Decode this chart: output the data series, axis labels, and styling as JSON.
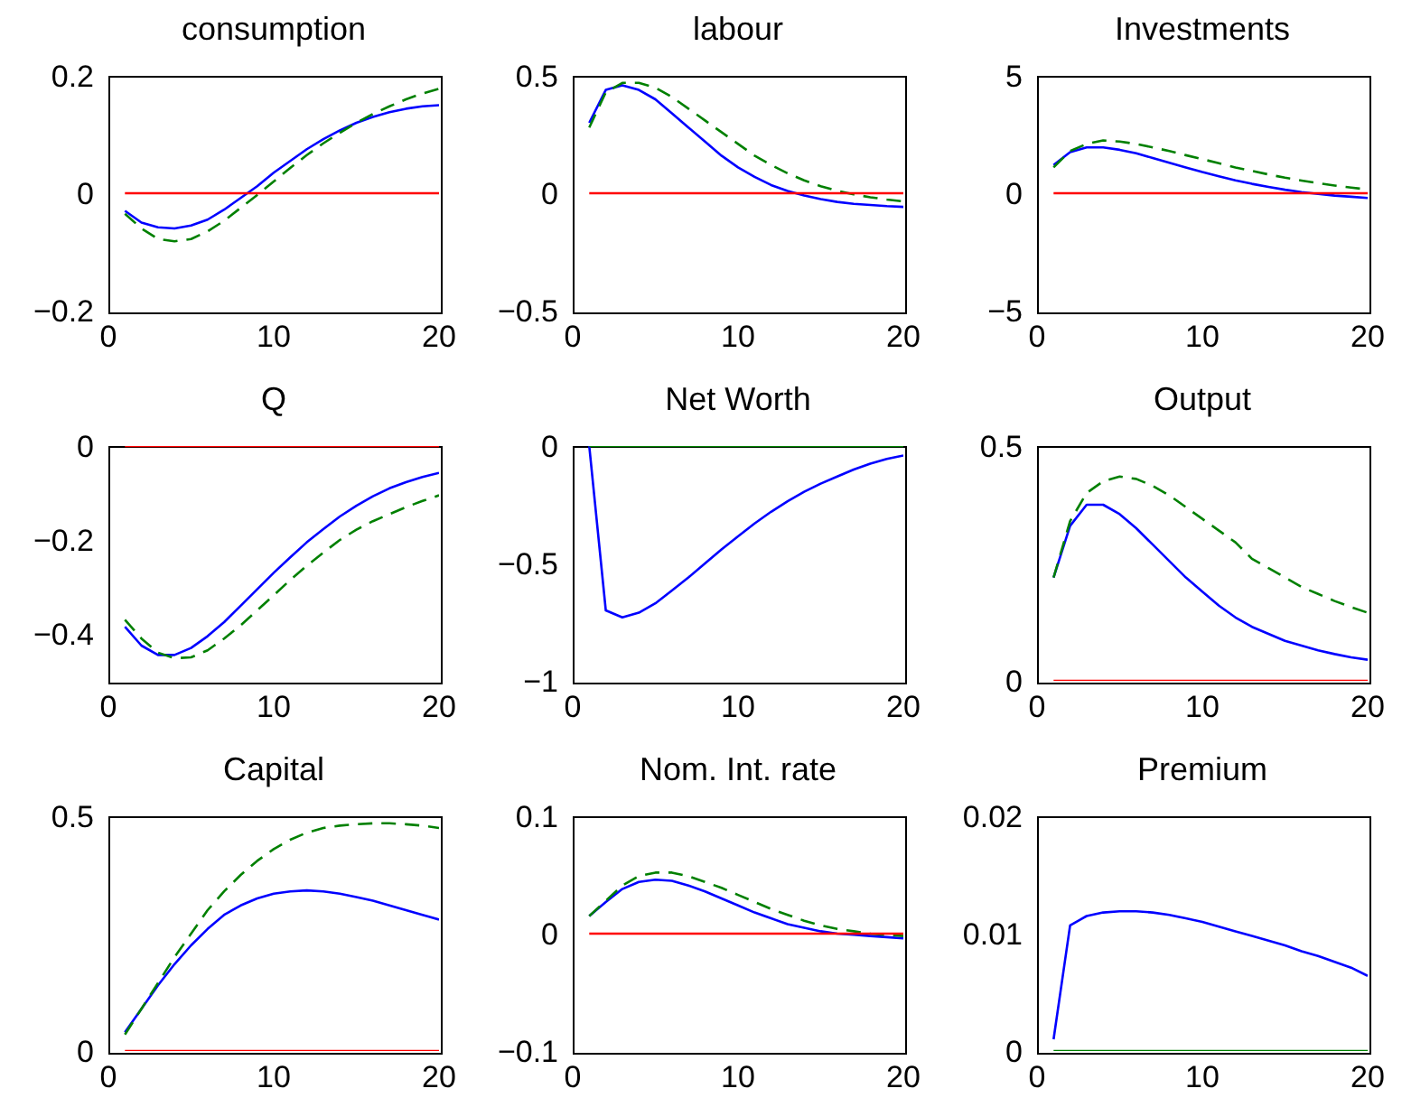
{
  "chart_data": [
    {
      "type": "line",
      "title": "consumption",
      "x": [
        1,
        2,
        3,
        4,
        5,
        6,
        7,
        8,
        9,
        10,
        11,
        12,
        13,
        14,
        15,
        16,
        17,
        18,
        19,
        20
      ],
      "xlim": [
        0,
        20
      ],
      "xticks": [
        0,
        10,
        20
      ],
      "ylim": [
        -0.2,
        0.2
      ],
      "yticks": [
        -0.2,
        0,
        0.2
      ],
      "series": [
        {
          "color": "#0000ff",
          "line_style": "solid",
          "values": [
            -0.03,
            -0.05,
            -0.058,
            -0.06,
            -0.055,
            -0.045,
            -0.028,
            -0.008,
            0.012,
            0.035,
            0.055,
            0.075,
            0.092,
            0.107,
            0.12,
            0.13,
            0.138,
            0.144,
            0.148,
            0.15
          ]
        },
        {
          "color": "#008000",
          "line_style": "dashed",
          "values": [
            -0.035,
            -0.06,
            -0.078,
            -0.082,
            -0.078,
            -0.065,
            -0.047,
            -0.025,
            -0.003,
            0.02,
            0.043,
            0.065,
            0.085,
            0.103,
            0.12,
            0.135,
            0.148,
            0.16,
            0.17,
            0.178
          ]
        },
        {
          "color": "#ff0000",
          "line_style": "solid",
          "values": [
            0,
            0,
            0,
            0,
            0,
            0,
            0,
            0,
            0,
            0,
            0,
            0,
            0,
            0,
            0,
            0,
            0,
            0,
            0,
            0
          ]
        }
      ]
    },
    {
      "type": "line",
      "title": "labour",
      "x": [
        1,
        2,
        3,
        4,
        5,
        6,
        7,
        8,
        9,
        10,
        11,
        12,
        13,
        14,
        15,
        16,
        17,
        18,
        19,
        20
      ],
      "xlim": [
        0,
        20
      ],
      "xticks": [
        0,
        10,
        20
      ],
      "ylim": [
        -0.5,
        0.5
      ],
      "yticks": [
        -0.5,
        0,
        0.5
      ],
      "series": [
        {
          "color": "#0000ff",
          "line_style": "solid",
          "values": [
            0.3,
            0.44,
            0.46,
            0.44,
            0.4,
            0.34,
            0.28,
            0.22,
            0.16,
            0.11,
            0.07,
            0.035,
            0.01,
            -0.01,
            -0.025,
            -0.037,
            -0.045,
            -0.05,
            -0.055,
            -0.058
          ]
        },
        {
          "color": "#008000",
          "line_style": "dashed",
          "values": [
            0.28,
            0.43,
            0.47,
            0.47,
            0.45,
            0.41,
            0.36,
            0.31,
            0.26,
            0.21,
            0.16,
            0.12,
            0.085,
            0.055,
            0.03,
            0.01,
            -0.005,
            -0.017,
            -0.027,
            -0.035
          ]
        },
        {
          "color": "#ff0000",
          "line_style": "solid",
          "values": [
            0,
            0,
            0,
            0,
            0,
            0,
            0,
            0,
            0,
            0,
            0,
            0,
            0,
            0,
            0,
            0,
            0,
            0,
            0,
            0
          ]
        }
      ]
    },
    {
      "type": "line",
      "title": "Investments",
      "x": [
        1,
        2,
        3,
        4,
        5,
        6,
        7,
        8,
        9,
        10,
        11,
        12,
        13,
        14,
        15,
        16,
        17,
        18,
        19,
        20
      ],
      "xlim": [
        0,
        20
      ],
      "xticks": [
        0,
        10,
        20
      ],
      "ylim": [
        -5,
        5
      ],
      "yticks": [
        -5,
        0,
        5
      ],
      "series": [
        {
          "color": "#0000ff",
          "line_style": "solid",
          "values": [
            1.2,
            1.75,
            1.95,
            1.95,
            1.85,
            1.7,
            1.5,
            1.3,
            1.1,
            0.9,
            0.72,
            0.55,
            0.4,
            0.27,
            0.15,
            0.05,
            -0.03,
            -0.1,
            -0.15,
            -0.2
          ]
        },
        {
          "color": "#008000",
          "line_style": "dashed",
          "values": [
            1.1,
            1.8,
            2.1,
            2.25,
            2.2,
            2.1,
            1.95,
            1.8,
            1.62,
            1.45,
            1.28,
            1.1,
            0.95,
            0.8,
            0.66,
            0.54,
            0.43,
            0.33,
            0.24,
            0.16
          ]
        },
        {
          "color": "#ff0000",
          "line_style": "solid",
          "values": [
            0,
            0,
            0,
            0,
            0,
            0,
            0,
            0,
            0,
            0,
            0,
            0,
            0,
            0,
            0,
            0,
            0,
            0,
            0,
            0
          ]
        }
      ]
    },
    {
      "type": "line",
      "title": "Q",
      "x": [
        1,
        2,
        3,
        4,
        5,
        6,
        7,
        8,
        9,
        10,
        11,
        12,
        13,
        14,
        15,
        16,
        17,
        18,
        19,
        20
      ],
      "xlim": [
        0,
        20
      ],
      "xticks": [
        0,
        10,
        20
      ],
      "ylim": [
        -0.5,
        0
      ],
      "yticks": [
        -0.4,
        -0.2,
        0
      ],
      "series": [
        {
          "color": "#0000ff",
          "line_style": "solid",
          "values": [
            -0.385,
            -0.425,
            -0.445,
            -0.445,
            -0.43,
            -0.405,
            -0.375,
            -0.34,
            -0.305,
            -0.27,
            -0.237,
            -0.205,
            -0.177,
            -0.15,
            -0.127,
            -0.107,
            -0.09,
            -0.077,
            -0.066,
            -0.057
          ]
        },
        {
          "color": "#008000",
          "line_style": "dashed",
          "values": [
            -0.37,
            -0.41,
            -0.44,
            -0.452,
            -0.45,
            -0.435,
            -0.41,
            -0.382,
            -0.35,
            -0.318,
            -0.285,
            -0.255,
            -0.227,
            -0.2,
            -0.178,
            -0.16,
            -0.145,
            -0.13,
            -0.117,
            -0.105
          ]
        },
        {
          "color": "#ff0000",
          "line_style": "solid",
          "values": [
            0,
            0,
            0,
            0,
            0,
            0,
            0,
            0,
            0,
            0,
            0,
            0,
            0,
            0,
            0,
            0,
            0,
            0,
            0,
            0
          ]
        }
      ]
    },
    {
      "type": "line",
      "title": "Net Worth",
      "x": [
        1,
        2,
        3,
        4,
        5,
        6,
        7,
        8,
        9,
        10,
        11,
        12,
        13,
        14,
        15,
        16,
        17,
        18,
        19,
        20
      ],
      "xlim": [
        0,
        20
      ],
      "xticks": [
        0,
        10,
        20
      ],
      "ylim": [
        -1,
        0
      ],
      "yticks": [
        -1,
        -0.5,
        0
      ],
      "series": [
        {
          "color": "#0000ff",
          "line_style": "solid",
          "values": [
            0,
            -0.7,
            -0.73,
            -0.71,
            -0.67,
            -0.615,
            -0.56,
            -0.5,
            -0.44,
            -0.385,
            -0.33,
            -0.28,
            -0.235,
            -0.195,
            -0.16,
            -0.13,
            -0.1,
            -0.075,
            -0.055,
            -0.04
          ]
        },
        {
          "color": "#008000",
          "line_style": "solid",
          "values": [
            0,
            0,
            0,
            0,
            0,
            0,
            0,
            0,
            0,
            0,
            0,
            0,
            0,
            0,
            0,
            0,
            0,
            0,
            0,
            0
          ]
        }
      ]
    },
    {
      "type": "line",
      "title": "Output",
      "x": [
        1,
        2,
        3,
        4,
        5,
        6,
        7,
        8,
        9,
        10,
        11,
        12,
        13,
        14,
        15,
        16,
        17,
        18,
        19,
        20
      ],
      "xlim": [
        0,
        20
      ],
      "xticks": [
        0,
        10,
        20
      ],
      "ylim": [
        0,
        0.5
      ],
      "yticks": [
        0,
        0.5
      ],
      "series": [
        {
          "color": "#0000ff",
          "line_style": "solid",
          "values": [
            0.22,
            0.33,
            0.375,
            0.375,
            0.355,
            0.325,
            0.29,
            0.255,
            0.22,
            0.19,
            0.16,
            0.135,
            0.115,
            0.1,
            0.085,
            0.075,
            0.065,
            0.057,
            0.05,
            0.045
          ]
        },
        {
          "color": "#008000",
          "line_style": "dashed",
          "values": [
            0.22,
            0.34,
            0.4,
            0.425,
            0.435,
            0.43,
            0.415,
            0.395,
            0.37,
            0.345,
            0.32,
            0.295,
            0.26,
            0.24,
            0.22,
            0.2,
            0.185,
            0.17,
            0.157,
            0.145
          ]
        },
        {
          "color": "#ff0000",
          "line_style": "solid",
          "values": [
            0,
            0,
            0,
            0,
            0,
            0,
            0,
            0,
            0,
            0,
            0,
            0,
            0,
            0,
            0,
            0,
            0,
            0,
            0,
            0
          ]
        }
      ]
    },
    {
      "type": "line",
      "title": "Capital",
      "x": [
        1,
        2,
        3,
        4,
        5,
        6,
        7,
        8,
        9,
        10,
        11,
        12,
        13,
        14,
        15,
        16,
        17,
        18,
        19,
        20
      ],
      "xlim": [
        0,
        20
      ],
      "xticks": [
        0,
        10,
        20
      ],
      "ylim": [
        0,
        0.5
      ],
      "yticks": [
        0,
        0.5
      ],
      "series": [
        {
          "color": "#0000ff",
          "line_style": "solid",
          "values": [
            0.04,
            0.09,
            0.14,
            0.185,
            0.225,
            0.26,
            0.29,
            0.31,
            0.325,
            0.335,
            0.34,
            0.342,
            0.34,
            0.335,
            0.328,
            0.32,
            0.31,
            0.3,
            0.29,
            0.28
          ]
        },
        {
          "color": "#008000",
          "line_style": "dashed",
          "values": [
            0.035,
            0.09,
            0.145,
            0.2,
            0.25,
            0.3,
            0.34,
            0.375,
            0.405,
            0.43,
            0.45,
            0.465,
            0.475,
            0.48,
            0.483,
            0.485,
            0.485,
            0.483,
            0.48,
            0.475
          ]
        },
        {
          "color": "#ff0000",
          "line_style": "solid",
          "values": [
            0,
            0,
            0,
            0,
            0,
            0,
            0,
            0,
            0,
            0,
            0,
            0,
            0,
            0,
            0,
            0,
            0,
            0,
            0,
            0
          ]
        }
      ]
    },
    {
      "type": "line",
      "title": "Nom. Int. rate",
      "x": [
        1,
        2,
        3,
        4,
        5,
        6,
        7,
        8,
        9,
        10,
        11,
        12,
        13,
        14,
        15,
        16,
        17,
        18,
        19,
        20
      ],
      "xlim": [
        0,
        20
      ],
      "xticks": [
        0,
        10,
        20
      ],
      "ylim": [
        -0.1,
        0.1
      ],
      "yticks": [
        -0.1,
        0,
        0.1
      ],
      "series": [
        {
          "color": "#0000ff",
          "line_style": "solid",
          "values": [
            0.015,
            0.027,
            0.038,
            0.044,
            0.046,
            0.045,
            0.041,
            0.036,
            0.03,
            0.024,
            0.018,
            0.013,
            0.008,
            0.005,
            0.002,
            0,
            -0.001,
            -0.002,
            -0.003,
            -0.004
          ]
        },
        {
          "color": "#008000",
          "line_style": "dashed",
          "values": [
            0.015,
            0.028,
            0.041,
            0.049,
            0.052,
            0.052,
            0.049,
            0.044,
            0.039,
            0.033,
            0.027,
            0.021,
            0.016,
            0.011,
            0.007,
            0.004,
            0.002,
            0,
            -0.001,
            -0.002
          ]
        },
        {
          "color": "#ff0000",
          "line_style": "solid",
          "values": [
            0,
            0,
            0,
            0,
            0,
            0,
            0,
            0,
            0,
            0,
            0,
            0,
            0,
            0,
            0,
            0,
            0,
            0,
            0,
            0
          ]
        }
      ]
    },
    {
      "type": "line",
      "title": "Premium",
      "x": [
        1,
        2,
        3,
        4,
        5,
        6,
        7,
        8,
        9,
        10,
        11,
        12,
        13,
        14,
        15,
        16,
        17,
        18,
        19,
        20
      ],
      "xlim": [
        0,
        20
      ],
      "xticks": [
        0,
        10,
        20
      ],
      "ylim": [
        0,
        0.02
      ],
      "yticks": [
        0,
        0.01,
        0.02
      ],
      "series": [
        {
          "color": "#0000ff",
          "line_style": "solid",
          "values": [
            0.001,
            0.0107,
            0.0115,
            0.0118,
            0.0119,
            0.0119,
            0.0118,
            0.0116,
            0.0113,
            0.011,
            0.0106,
            0.0102,
            0.0098,
            0.0094,
            0.009,
            0.0085,
            0.0081,
            0.0076,
            0.0071,
            0.0064
          ]
        },
        {
          "color": "#008000",
          "line_style": "solid",
          "values": [
            0,
            0,
            0,
            0,
            0,
            0,
            0,
            0,
            0,
            0,
            0,
            0,
            0,
            0,
            0,
            0,
            0,
            0,
            0,
            0
          ]
        }
      ]
    }
  ]
}
